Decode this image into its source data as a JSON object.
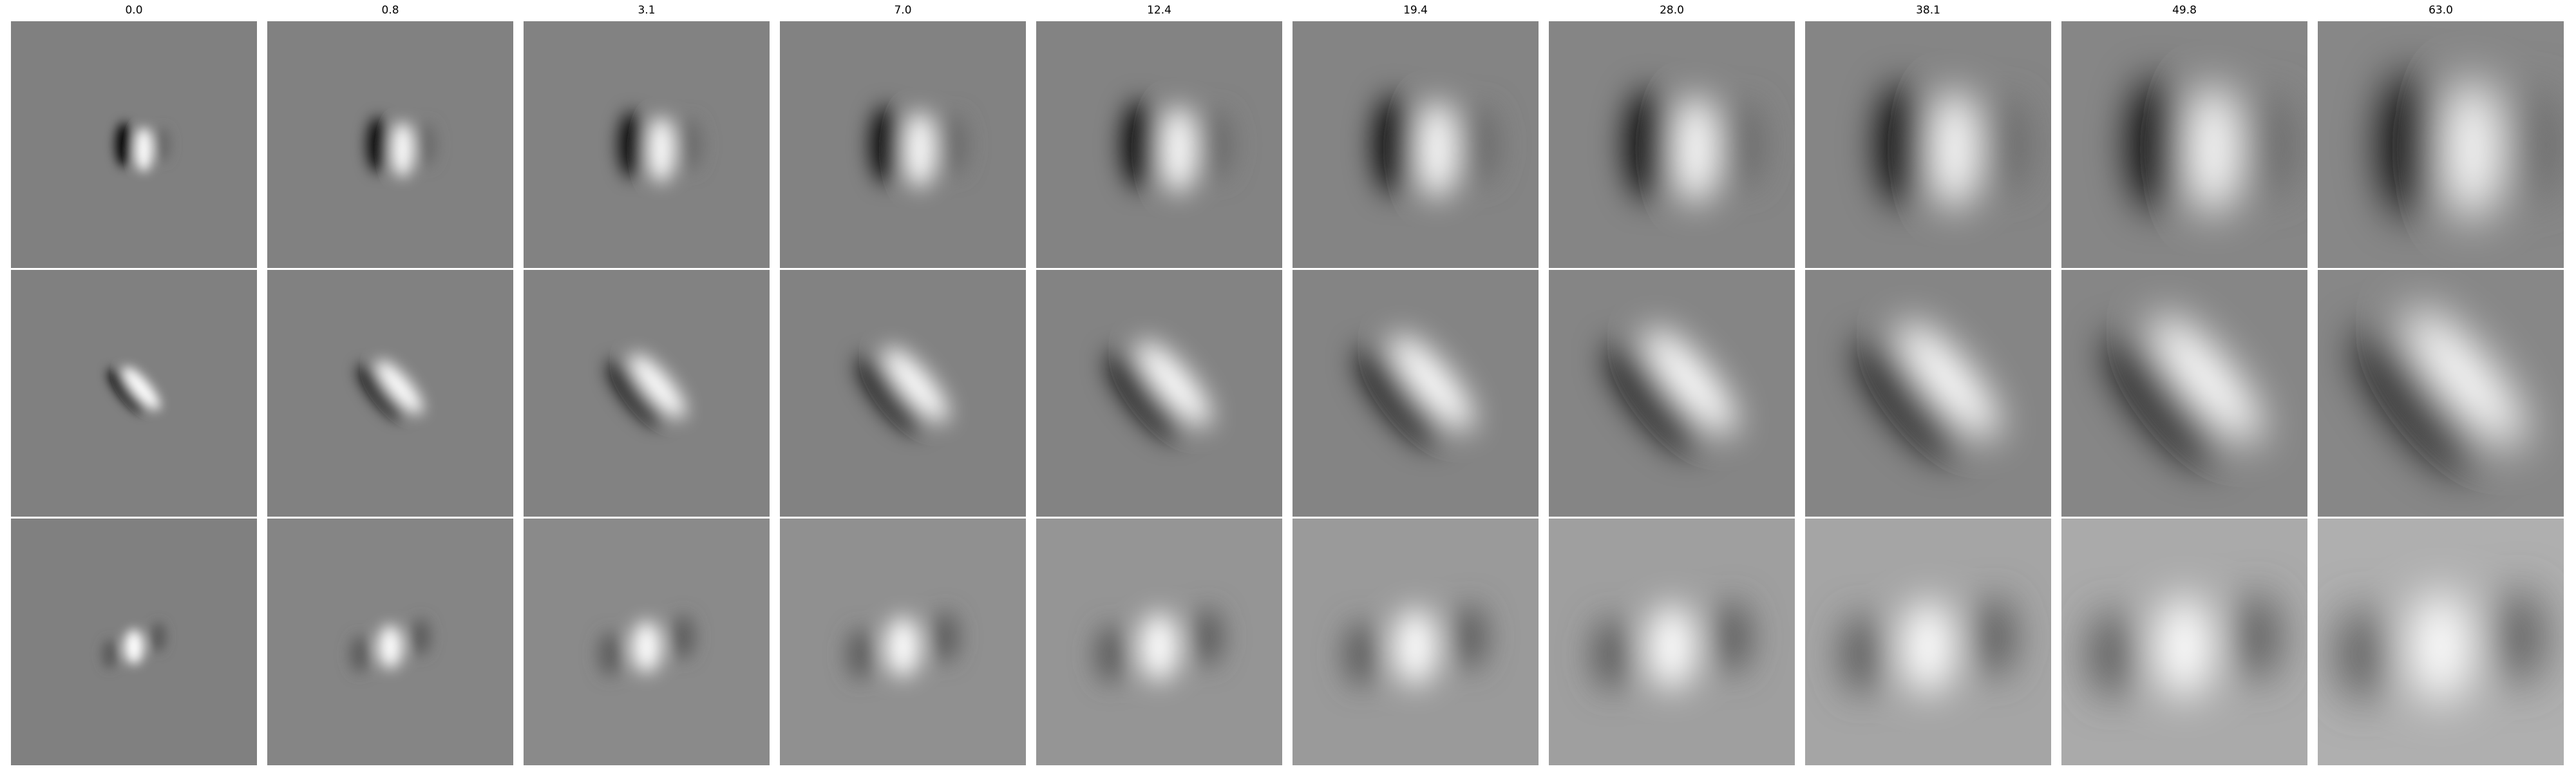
{
  "column_labels": [
    "0.0",
    "0.8",
    "3.1",
    "7.0",
    "12.4",
    "19.4",
    "28.0",
    "38.1",
    "49.8",
    "63.0"
  ],
  "grid": {
    "rows": 3,
    "columns": 10
  },
  "colors": {
    "background": "#ffffff",
    "tile_neutral": "#808080",
    "dark": "#000000",
    "light": "#ffffff"
  },
  "row_patterns": [
    "vertical dark/light pair, dark left of light",
    "diagonal dark/light pair along upper-left to lower-right axis",
    "central light blob flanked by darker lobes"
  ]
}
